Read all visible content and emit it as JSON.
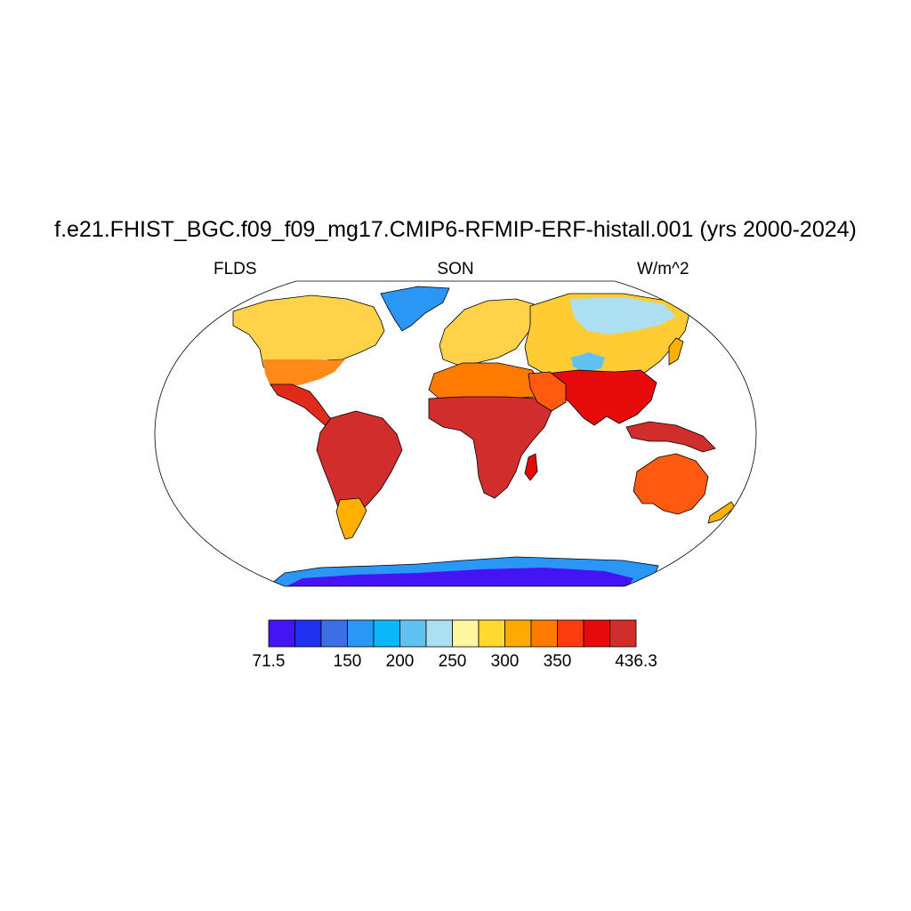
{
  "title": "f.e21.FHIST_BGC.f09_f09_mg17.CMIP6-RFMIP-ERF-histall.001 (yrs 2000-2024)",
  "left_label": "FLDS",
  "center_label": "SON",
  "right_label": "W/m^2",
  "colorbar": {
    "min_label": "71.5",
    "max_label": "436.3",
    "tick_labels": [
      "150",
      "200",
      "250",
      "300",
      "350"
    ],
    "tick_values": [
      150,
      200,
      250,
      300,
      350
    ],
    "range": [
      71.5,
      436.3
    ],
    "levels": [
      71.5,
      100,
      125,
      150,
      175,
      200,
      225,
      250,
      275,
      300,
      325,
      350,
      375,
      400,
      436.3
    ],
    "colors": [
      "#4514f4",
      "#1f32f0",
      "#3c6ee6",
      "#2a96f5",
      "#0ab7f8",
      "#5fc2f0",
      "#addff2",
      "#fff7a0",
      "#ffd932",
      "#ffaa00",
      "#ff7a00",
      "#ff3c0f",
      "#e60a0a",
      "#d22d2d"
    ]
  },
  "regions": {
    "north_america": "#ffd24a",
    "north_america_south": "#ff8a1a",
    "central_america": "#e02a1a",
    "greenland": "#2a96f5",
    "south_america": "#d22d2d",
    "south_america_south": "#ffb000",
    "europe": "#ffd24a",
    "siberia": "#addff2",
    "asia": "#ffcc33",
    "africa_north": "#ff7a00",
    "africa": "#d22d2d",
    "south_asia": "#e60a0a",
    "indonesia": "#d22d2d",
    "australia": "#ff5a10",
    "antarctica": "#4514f4",
    "antarctica_edge": "#2a96f5"
  }
}
